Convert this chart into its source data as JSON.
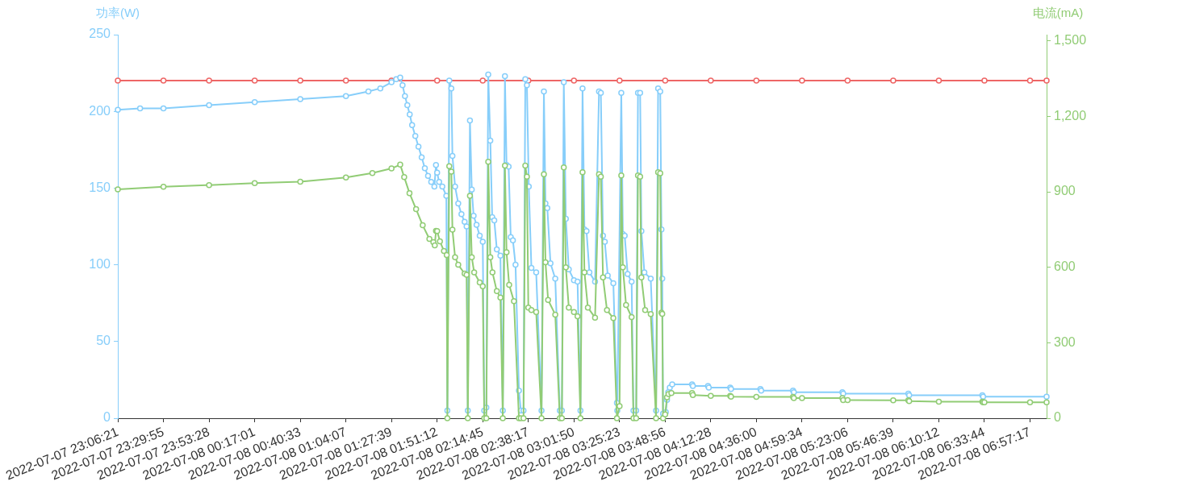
{
  "chart_data": {
    "type": "line",
    "ylabel": "功率(W)",
    "y2label": "电流(mA)",
    "xlim": [
      "2022-07-07T23:06:21",
      "2022-07-08T07:05:50"
    ],
    "xticks": [
      {
        "value": "2022-07-07T23:06:21",
        "label": "2022-07-07 23:06:21"
      },
      {
        "value": "2022-07-07T23:29:55",
        "label": "2022-07-07 23:29:55"
      },
      {
        "value": "2022-07-07T23:53:28",
        "label": "2022-07-07 23:53:28"
      },
      {
        "value": "2022-07-08T00:17:01",
        "label": "2022-07-08 00:17:01"
      },
      {
        "value": "2022-07-08T00:40:33",
        "label": "2022-07-08 00:40:33"
      },
      {
        "value": "2022-07-08T01:04:07",
        "label": "2022-07-08 01:04:07"
      },
      {
        "value": "2022-07-08T01:27:39",
        "label": "2022-07-08 01:27:39"
      },
      {
        "value": "2022-07-08T01:51:12",
        "label": "2022-07-08 01:51:12"
      },
      {
        "value": "2022-07-08T02:14:45",
        "label": "2022-07-08 02:14:45"
      },
      {
        "value": "2022-07-08T02:38:17",
        "label": "2022-07-08 02:38:17"
      },
      {
        "value": "2022-07-08T03:01:50",
        "label": "2022-07-08 03:01:50"
      },
      {
        "value": "2022-07-08T03:25:23",
        "label": "2022-07-08 03:25:23"
      },
      {
        "value": "2022-07-08T03:48:56",
        "label": "2022-07-08 03:48:56"
      },
      {
        "value": "2022-07-08T04:12:28",
        "label": "2022-07-08 04:12:28"
      },
      {
        "value": "2022-07-08T04:36:00",
        "label": "2022-07-08 04:36:00"
      },
      {
        "value": "2022-07-08T04:59:34",
        "label": "2022-07-08 04:59:34"
      },
      {
        "value": "2022-07-08T05:23:06",
        "label": "2022-07-08 05:23:06"
      },
      {
        "value": "2022-07-08T05:46:39",
        "label": "2022-07-08 05:46:39"
      },
      {
        "value": "2022-07-08T06:10:12",
        "label": "2022-07-08 06:10:12"
      },
      {
        "value": "2022-07-08T06:33:44",
        "label": "2022-07-08 06:33:44"
      },
      {
        "value": "2022-07-08T06:57:17",
        "label": "2022-07-08 06:57:17"
      }
    ],
    "ylim": [
      0,
      250
    ],
    "yticks": [
      0,
      50,
      100,
      150,
      200,
      250
    ],
    "y2lim": [
      0,
      1525
    ],
    "y2ticks": [
      0,
      300,
      600,
      900,
      {
        "value": 1200,
        "label": "1,200"
      },
      {
        "value": 1500,
        "label": "1,500"
      }
    ],
    "series": [
      {
        "color": "#ee6666",
        "marker": "circle",
        "x": [
          "2022-07-07T23:06:21",
          "2022-07-07T23:29:55",
          "2022-07-07T23:53:28",
          "2022-07-08T00:17:01",
          "2022-07-08T00:40:33",
          "2022-07-08T01:04:07",
          "2022-07-08T01:27:39",
          "2022-07-08T01:51:12",
          "2022-07-08T02:14:45",
          "2022-07-08T02:38:17",
          "2022-07-08T03:01:50",
          "2022-07-08T03:25:23",
          "2022-07-08T03:48:56",
          "2022-07-08T04:12:28",
          "2022-07-08T04:36:00",
          "2022-07-08T04:59:34",
          "2022-07-08T05:23:06",
          "2022-07-08T05:46:39",
          "2022-07-08T06:10:12",
          "2022-07-08T06:33:44",
          "2022-07-08T06:57:17",
          "2022-07-08T07:05:50"
        ],
        "values": [
          220,
          220,
          220,
          220,
          220,
          220,
          220,
          220,
          220,
          220,
          220,
          220,
          220,
          220,
          220,
          220,
          220,
          220,
          220,
          220,
          220,
          220
        ]
      },
      {
        "color": "#87cefa",
        "marker": "circle",
        "x": [
          "2022-07-07T23:06:21",
          "2022-07-07T23:17:51",
          "2022-07-07T23:29:55",
          "2022-07-07T23:53:28",
          "2022-07-08T00:17:01",
          "2022-07-08T00:40:33",
          "2022-07-08T01:04:07",
          "2022-07-08T01:15:43",
          "2022-07-08T01:21:53",
          "2022-07-08T01:27:39",
          "2022-07-08T01:30:04",
          "2022-07-08T01:32:08",
          "2022-07-08T01:33:21",
          "2022-07-08T01:34:35",
          "2022-07-08T01:35:49",
          "2022-07-08T01:37:03",
          "2022-07-08T01:38:17",
          "2022-07-08T01:39:56",
          "2022-07-08T01:41:34",
          "2022-07-08T01:43:13",
          "2022-07-08T01:44:51",
          "2022-07-08T01:46:30",
          "2022-07-08T01:48:09",
          "2022-07-08T01:49:47",
          "2022-07-08T01:50:36",
          "2022-07-08T01:51:12",
          "2022-07-08T01:52:15",
          "2022-07-08T01:53:53",
          "2022-07-08T01:55:57",
          "2022-07-08T01:56:29",
          "2022-07-08T01:57:28",
          "2022-07-08T01:58:32",
          "2022-07-08T01:59:06",
          "2022-07-08T02:00:28",
          "2022-07-08T02:02:06",
          "2022-07-08T02:03:45",
          "2022-07-08T02:05:23",
          "2022-07-08T02:06:25",
          "2022-07-08T02:07:02",
          "2022-07-08T02:08:08",
          "2022-07-08T02:09:05",
          "2022-07-08T02:10:02",
          "2022-07-08T02:11:33",
          "2022-07-08T02:13:11",
          "2022-07-08T02:14:45",
          "2022-07-08T02:15:32",
          "2022-07-08T02:16:36",
          "2022-07-08T02:17:35",
          "2022-07-08T02:18:39",
          "2022-07-08T02:19:38",
          "2022-07-08T02:20:42",
          "2022-07-08T02:22:01",
          "2022-07-08T02:23:52",
          "2022-07-08T02:25:06",
          "2022-07-08T02:26:12",
          "2022-07-08T02:27:02",
          "2022-07-08T02:28:06",
          "2022-07-08T02:29:12",
          "2022-07-08T02:30:19",
          "2022-07-08T02:31:40",
          "2022-07-08T02:33:26",
          "2022-07-08T02:34:25",
          "2022-07-08T02:35:47",
          "2022-07-08T02:36:43",
          "2022-07-08T02:37:33",
          "2022-07-08T02:38:31",
          "2022-07-08T02:39:52",
          "2022-07-08T02:42:20",
          "2022-07-08T02:45:05",
          "2022-07-08T02:46:19",
          "2022-07-08T02:47:08",
          "2022-07-08T02:48:05",
          "2022-07-08T02:49:43",
          "2022-07-08T02:52:11",
          "2022-07-08T02:54:32",
          "2022-07-08T02:55:36",
          "2022-07-08T02:56:35",
          "2022-07-08T02:57:39",
          "2022-07-08T02:59:10",
          "2022-07-08T03:01:50",
          "2022-07-08T03:03:41",
          "2022-07-08T03:05:12",
          "2022-07-08T03:06:16",
          "2022-07-08T03:07:15",
          "2022-07-08T03:08:19",
          "2022-07-08T03:09:50",
          "2022-07-08T03:12:43",
          "2022-07-08T03:14:46",
          "2022-07-08T03:15:43",
          "2022-07-08T03:16:49",
          "2022-07-08T03:17:46",
          "2022-07-08T03:19:17",
          "2022-07-08T03:22:10",
          "2022-07-08T03:24:01",
          "2022-07-08T03:24:13",
          "2022-07-08T03:26:16",
          "2022-07-08T03:27:05",
          "2022-07-08T03:28:02",
          "2022-07-08T03:29:33",
          "2022-07-08T03:31:36",
          "2022-07-08T03:32:33",
          "2022-07-08T03:33:57",
          "2022-07-08T03:34:53",
          "2022-07-08T03:36:00",
          "2022-07-08T03:36:39",
          "2022-07-08T03:38:11",
          "2022-07-08T03:41:28",
          "2022-07-08T03:44:13",
          "2022-07-08T03:45:17",
          "2022-07-08T03:46:23",
          "2022-07-08T03:47:00",
          "2022-07-08T03:47:25",
          "2022-07-08T03:47:50",
          "2022-07-08T03:49:16",
          "2022-07-08T03:49:53",
          "2022-07-08T03:50:30",
          "2022-07-08T03:51:19",
          "2022-07-08T03:52:33",
          "2022-07-08T04:02:49",
          "2022-07-08T04:03:13",
          "2022-07-08T04:11:02",
          "2022-07-08T04:11:26",
          "2022-07-08T04:22:30",
          "2022-07-08T04:22:55",
          "2022-07-08T04:38:06",
          "2022-07-08T04:38:30",
          "2022-07-08T04:54:56",
          "2022-07-08T04:55:21",
          "2022-07-08T05:20:24",
          "2022-07-08T05:20:49",
          "2022-07-08T05:54:28",
          "2022-07-08T05:54:53",
          "2022-07-08T06:32:40",
          "2022-07-08T06:33:04",
          "2022-07-08T07:05:50"
        ],
        "values": [
          201,
          202,
          202,
          204,
          206,
          208,
          210,
          213,
          215,
          219,
          221,
          222,
          217,
          210,
          204,
          198,
          191,
          184,
          177,
          170,
          163,
          158,
          154,
          151,
          165,
          160,
          154,
          151,
          145,
          5,
          220,
          215,
          171,
          151,
          140,
          133,
          128,
          125,
          5,
          194,
          149,
          132,
          126,
          119,
          115,
          5,
          7,
          224,
          181,
          131,
          129,
          110,
          106,
          5,
          223,
          165,
          164,
          118,
          116,
          100,
          18,
          5,
          5,
          221,
          217,
          151,
          98,
          95,
          5,
          213,
          140,
          137,
          101,
          91,
          5,
          5,
          219,
          130,
          97,
          90,
          89,
          5,
          215,
          123,
          122,
          95,
          89,
          213,
          212,
          119,
          115,
          93,
          88,
          10,
          5,
          212,
          120,
          119,
          94,
          89,
          5,
          5,
          212,
          212,
          122,
          95,
          91,
          5,
          215,
          213,
          123,
          91,
          3,
          4,
          12,
          17,
          20,
          22,
          22,
          21,
          21,
          20,
          20,
          19,
          19,
          18,
          18,
          17,
          17,
          16,
          16,
          15,
          15,
          14,
          14
        ]
      },
      {
        "color": "#91cc75",
        "marker": "circle",
        "axis": "y2",
        "x": [
          "2022-07-07T23:06:21",
          "2022-07-07T23:29:55",
          "2022-07-07T23:53:28",
          "2022-07-08T00:17:01",
          "2022-07-08T00:40:33",
          "2022-07-08T01:04:07",
          "2022-07-08T01:17:46",
          "2022-07-08T01:27:39",
          "2022-07-08T01:32:08",
          "2022-07-08T01:34:11",
          "2022-07-08T01:36:56",
          "2022-07-08T01:40:20",
          "2022-07-08T01:43:45",
          "2022-07-08T01:47:12",
          "2022-07-08T01:49:15",
          "2022-07-08T01:49:59",
          "2022-07-08T01:50:36",
          "2022-07-08T01:51:12",
          "2022-07-08T01:52:39",
          "2022-07-08T01:54:43",
          "2022-07-08T01:56:09",
          "2022-07-08T01:56:29",
          "2022-07-08T01:57:28",
          "2022-07-08T01:58:32",
          "2022-07-08T01:59:06",
          "2022-07-08T02:00:28",
          "2022-07-08T02:02:06",
          "2022-07-08T02:05:23",
          "2022-07-08T02:06:25",
          "2022-07-08T02:07:02",
          "2022-07-08T02:08:08",
          "2022-07-08T02:09:05",
          "2022-07-08T02:10:19",
          "2022-07-08T02:13:11",
          "2022-07-08T02:14:45",
          "2022-07-08T02:15:32",
          "2022-07-08T02:16:36",
          "2022-07-08T02:17:35",
          "2022-07-08T02:18:39",
          "2022-07-08T02:19:46",
          "2022-07-08T02:22:01",
          "2022-07-08T02:23:52",
          "2022-07-08T02:25:06",
          "2022-07-08T02:26:12",
          "2022-07-08T02:27:02",
          "2022-07-08T02:28:23",
          "2022-07-08T02:30:51",
          "2022-07-08T02:33:26",
          "2022-07-08T02:34:25",
          "2022-07-08T02:35:47",
          "2022-07-08T02:36:43",
          "2022-07-08T02:37:33",
          "2022-07-08T02:38:17",
          "2022-07-08T02:39:52",
          "2022-07-08T02:42:20",
          "2022-07-08T02:45:05",
          "2022-07-08T02:46:19",
          "2022-07-08T02:47:08",
          "2022-07-08T02:48:29",
          "2022-07-08T02:52:11",
          "2022-07-08T02:54:32",
          "2022-07-08T02:55:36",
          "2022-07-08T02:56:35",
          "2022-07-08T02:57:39",
          "2022-07-08T02:59:10",
          "2022-07-08T03:01:50",
          "2022-07-08T03:03:41",
          "2022-07-08T03:05:12",
          "2022-07-08T03:06:16",
          "2022-07-08T03:07:15",
          "2022-07-08T03:09:01",
          "2022-07-08T03:12:43",
          "2022-07-08T03:14:46",
          "2022-07-08T03:15:43",
          "2022-07-08T03:16:49",
          "2022-07-08T03:18:53",
          "2022-07-08T03:22:10",
          "2022-07-08T03:24:01",
          "2022-07-08T03:25:23",
          "2022-07-08T03:26:16",
          "2022-07-08T03:27:05",
          "2022-07-08T03:28:44",
          "2022-07-08T03:31:36",
          "2022-07-08T03:32:33",
          "2022-07-08T03:33:57",
          "2022-07-08T03:34:53",
          "2022-07-08T03:36:00",
          "2022-07-08T03:36:39",
          "2022-07-08T03:38:35",
          "2022-07-08T03:41:28",
          "2022-07-08T03:44:13",
          "2022-07-08T03:45:17",
          "2022-07-08T03:46:23",
          "2022-07-08T03:47:00",
          "2022-07-08T03:47:25",
          "2022-07-08T03:47:50",
          "2022-07-08T03:48:56",
          "2022-07-08T03:49:53",
          "2022-07-08T03:50:39",
          "2022-07-08T03:52:08",
          "2022-07-08T04:02:49",
          "2022-07-08T04:03:13",
          "2022-07-08T04:12:28",
          "2022-07-08T04:22:30",
          "2022-07-08T04:22:55",
          "2022-07-08T04:36:00",
          "2022-07-08T04:54:56",
          "2022-07-08T04:55:21",
          "2022-07-08T04:59:34",
          "2022-07-08T05:20:24",
          "2022-07-08T05:20:49",
          "2022-07-08T05:23:06",
          "2022-07-08T05:46:39",
          "2022-07-08T05:54:28",
          "2022-07-08T05:54:53",
          "2022-07-08T06:10:12",
          "2022-07-08T06:32:40",
          "2022-07-08T06:33:04",
          "2022-07-08T06:33:44",
          "2022-07-08T06:57:17",
          "2022-07-08T07:05:50"
        ],
        "values": [
          910,
          920,
          927,
          935,
          940,
          957,
          975,
          993,
          1008,
          959,
          895,
          831,
          767,
          713,
          700,
          687,
          745,
          744,
          703,
          665,
          649,
          0,
          1002,
          980,
          750,
          640,
          610,
          575,
          570,
          0,
          884,
          640,
          580,
          540,
          525,
          0,
          0,
          1020,
          640,
          580,
          505,
          480,
          0,
          1004,
          660,
          530,
          465,
          0,
          0,
          0,
          1004,
          960,
          440,
          430,
          422,
          0,
          970,
          620,
          470,
          412,
          0,
          0,
          997,
          600,
          440,
          422,
          405,
          0,
          978,
          580,
          440,
          400,
          970,
          960,
          560,
          430,
          398,
          0,
          48,
          965,
          600,
          450,
          402,
          0,
          0,
          965,
          960,
          560,
          430,
          414,
          0,
          978,
          974,
          420,
          415,
          0,
          15,
          83,
          96,
          100,
          100,
          92,
          89,
          89,
          86,
          85,
          85,
          80,
          80,
          80,
          72,
          72,
          71,
          71,
          68,
          66,
          66,
          63,
          63,
          63,
          63
        ]
      }
    ]
  }
}
